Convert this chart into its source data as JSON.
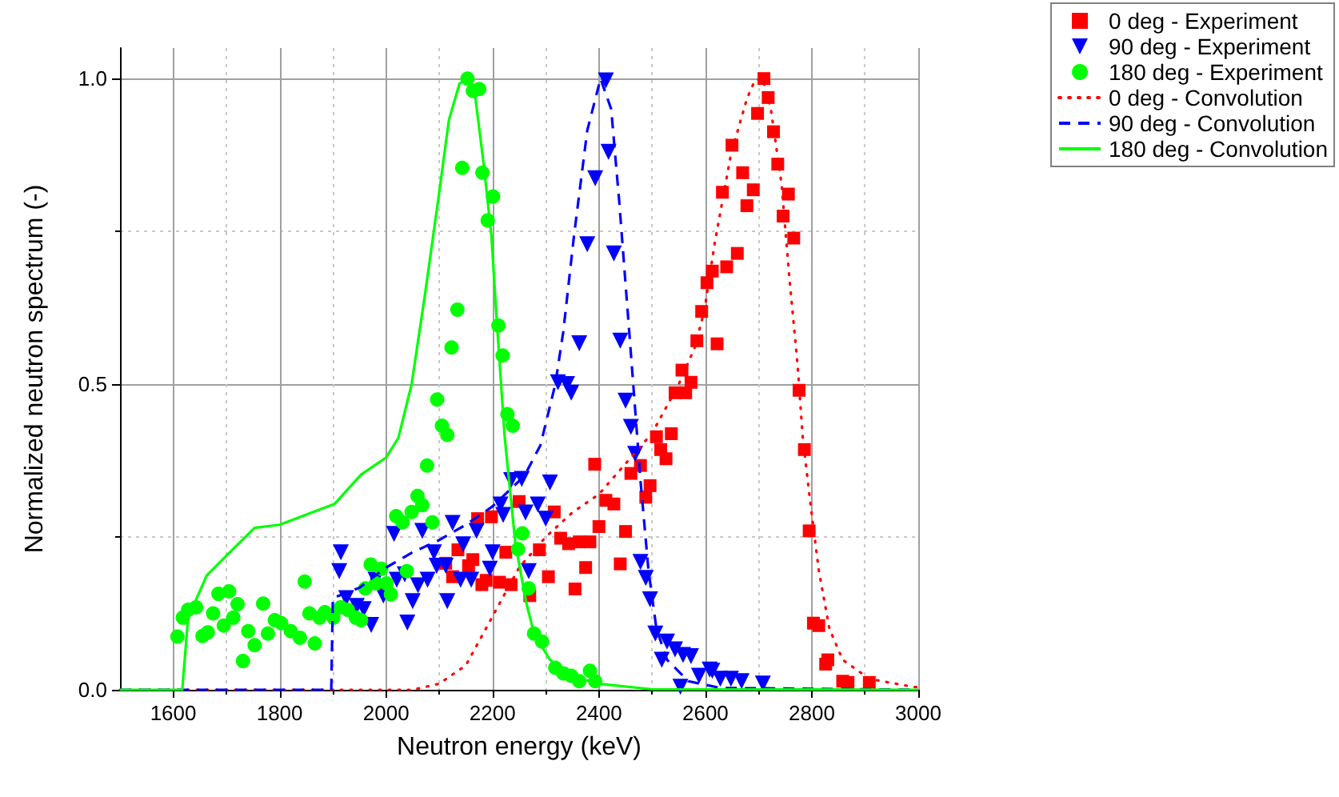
{
  "chart_data": {
    "type": "scatter",
    "xlabel": "Neutron energy (keV)",
    "ylabel": "Normalized neutron spectrum (-)",
    "xlim": [
      1500,
      3000
    ],
    "ylim": [
      0,
      1.05
    ],
    "xticks": [
      1600,
      {
        "value": 1700,
        "label": null
      },
      1800,
      {
        "value": 1900,
        "label": null
      },
      2000,
      {
        "value": 2100,
        "label": null
      },
      2200,
      {
        "value": 2300,
        "label": null
      },
      2400,
      {
        "value": 2500,
        "label": null
      },
      2600,
      {
        "value": 2700,
        "label": null
      },
      2800,
      {
        "value": 2900,
        "label": null
      },
      3000
    ],
    "yticks": [
      {
        "value": 0,
        "label": "0.0"
      },
      {
        "value": 0.25,
        "label": null
      },
      {
        "value": 0.5,
        "label": "0.5"
      },
      {
        "value": 0.75,
        "label": null
      },
      {
        "value": 1,
        "label": "1.0"
      }
    ],
    "grid": true,
    "legend": "top right",
    "series": [
      {
        "name": "0 deg - Experiment",
        "marker": "square",
        "color": "#ff0000",
        "x": [
          2112,
          2125,
          2135,
          2155,
          2163,
          2172,
          2180,
          2188,
          2198,
          2213,
          2225,
          2235,
          2250,
          2270,
          2288,
          2305,
          2316,
          2328,
          2343,
          2355,
          2363,
          2375,
          2383,
          2392,
          2400,
          2413,
          2428,
          2440,
          2450,
          2460,
          2478,
          2488,
          2496,
          2508,
          2516,
          2526,
          2536,
          2543,
          2556,
          2563,
          2573,
          2584,
          2593,
          2603,
          2613,
          2622,
          2632,
          2640,
          2650,
          2660,
          2670,
          2678,
          2690,
          2698,
          2710,
          2718,
          2728,
          2736,
          2746,
          2756,
          2766,
          2776,
          2786,
          2795,
          2803,
          2813,
          2826,
          2830,
          2858,
          2868,
          2908
        ],
        "values": [
          0.207,
          0.185,
          0.229,
          0.203,
          0.213,
          0.28,
          0.172,
          0.179,
          0.283,
          0.176,
          0.225,
          0.172,
          0.308,
          0.154,
          0.229,
          0.185,
          0.291,
          0.248,
          0.239,
          0.165,
          0.242,
          0.2,
          0.242,
          0.369,
          0.267,
          0.31,
          0.304,
          0.206,
          0.259,
          0.354,
          0.367,
          0.315,
          0.334,
          0.414,
          0.393,
          0.378,
          0.419,
          0.486,
          0.523,
          0.486,
          0.503,
          0.571,
          0.619,
          0.666,
          0.685,
          0.566,
          0.814,
          0.692,
          0.891,
          0.714,
          0.846,
          0.792,
          0.818,
          0.943,
          1.0,
          0.969,
          0.913,
          0.86,
          0.775,
          0.811,
          0.739,
          0.49,
          0.393,
          0.26,
          0.109,
          0.105,
          0.042,
          0.049,
          0.014,
          0.012,
          0.012
        ]
      },
      {
        "name": "90 deg - Experiment",
        "marker": "triangle-down",
        "color": "#0000ff",
        "x": [
          1912,
          1915,
          1925,
          1945,
          1958,
          1972,
          1980,
          1995,
          2015,
          2020,
          2035,
          2040,
          2050,
          2060,
          2068,
          2078,
          2090,
          2095,
          2112,
          2115,
          2125,
          2140,
          2145,
          2160,
          2170,
          2195,
          2200,
          2215,
          2220,
          2235,
          2255,
          2262,
          2268,
          2285,
          2300,
          2308,
          2323,
          2340,
          2348,
          2363,
          2378,
          2393,
          2413,
          2418,
          2428,
          2440,
          2450,
          2460,
          2468,
          2478,
          2488,
          2496,
          2506,
          2518,
          2528,
          2543,
          2553,
          2558,
          2573,
          2588,
          2608,
          2613,
          2628,
          2648,
          2668,
          2708
        ],
        "values": [
          0.194,
          0.225,
          0.15,
          0.137,
          0.132,
          0.106,
          0.18,
          0.154,
          0.255,
          0.18,
          0.189,
          0.11,
          0.145,
          0.171,
          0.26,
          0.18,
          0.225,
          0.203,
          0.203,
          0.145,
          0.273,
          0.18,
          0.238,
          0.18,
          0.26,
          0.198,
          0.225,
          0.303,
          0.286,
          0.343,
          0.345,
          0.29,
          0.194,
          0.303,
          0.28,
          0.339,
          0.503,
          0.5,
          0.486,
          0.567,
          0.729,
          0.837,
          0.997,
          0.88,
          0.714,
          0.571,
          0.473,
          0.43,
          0.386,
          0.209,
          0.183,
          0.148,
          0.092,
          0.049,
          0.079,
          0.066,
          0.005,
          0.057,
          0.055,
          0.023,
          0.033,
          0.031,
          0.018,
          0.018,
          0.014,
          0.01
        ]
      },
      {
        "name": "180 deg - Experiment",
        "marker": "circle",
        "color": "#00ff00",
        "x": [
          1608,
          1618,
          1628,
          1643,
          1655,
          1665,
          1675,
          1685,
          1695,
          1705,
          1713,
          1721,
          1731,
          1741,
          1753,
          1769,
          1778,
          1791,
          1803,
          1821,
          1838,
          1847,
          1856,
          1866,
          1875,
          1885,
          1901,
          1915,
          1928,
          1943,
          1953,
          1961,
          1971,
          1981,
          1991,
          2001,
          2009,
          2019,
          2031,
          2039,
          2048,
          2059,
          2068,
          2077,
          2087,
          2096,
          2105,
          2115,
          2123,
          2134,
          2143,
          2153,
          2163,
          2175,
          2181,
          2191,
          2201,
          2211,
          2219,
          2228,
          2238,
          2248,
          2256,
          2268,
          2278,
          2293,
          2318,
          2333,
          2348,
          2363,
          2383,
          2393
        ],
        "values": [
          0.087,
          0.118,
          0.131,
          0.135,
          0.088,
          0.094,
          0.125,
          0.157,
          0.105,
          0.161,
          0.118,
          0.14,
          0.047,
          0.096,
          0.073,
          0.141,
          0.092,
          0.114,
          0.109,
          0.096,
          0.085,
          0.177,
          0.125,
          0.076,
          0.118,
          0.127,
          0.118,
          0.135,
          0.131,
          0.118,
          0.114,
          0.166,
          0.205,
          0.174,
          0.198,
          0.174,
          0.156,
          0.284,
          0.274,
          0.194,
          0.291,
          0.317,
          0.302,
          0.367,
          0.274,
          0.475,
          0.432,
          0.417,
          0.56,
          0.622,
          0.854,
          1.0,
          0.98,
          0.983,
          0.846,
          0.768,
          0.807,
          0.596,
          0.547,
          0.451,
          0.432,
          0.23,
          0.256,
          0.166,
          0.092,
          0.079,
          0.036,
          0.027,
          0.023,
          0.014,
          0.031,
          0.014
        ]
      },
      {
        "name": "0 deg - Convolution",
        "type": "line",
        "marker": "none",
        "line_style": "dotted",
        "color": "#ff0000",
        "x": [
          1500,
          2050,
          2100,
          2150,
          2200,
          2250,
          2300,
          2350,
          2400,
          2450,
          2500,
          2550,
          2580,
          2598,
          2618,
          2648,
          2678,
          2693,
          2708,
          2723,
          2743,
          2758,
          2773,
          2783,
          2798,
          2813,
          2833,
          2858,
          2908,
          2988,
          3000
        ],
        "values": [
          0,
          0,
          0.01,
          0.04,
          0.12,
          0.2,
          0.25,
          0.29,
          0.32,
          0.37,
          0.42,
          0.5,
          0.56,
          0.62,
          0.733,
          0.876,
          0.967,
          0.997,
          1.0,
          0.95,
          0.828,
          0.672,
          0.534,
          0.412,
          0.3,
          0.196,
          0.1,
          0.049,
          0.018,
          0.005,
          0.004
        ]
      },
      {
        "name": "90 deg - Convolution",
        "type": "line",
        "marker": "none",
        "line_style": "dashed",
        "color": "#0000ff",
        "x": [
          1500,
          1897,
          1900,
          1950,
          2000,
          2050,
          2100,
          2150,
          2200,
          2230,
          2260,
          2290,
          2318,
          2333,
          2353,
          2378,
          2403,
          2423,
          2438,
          2453,
          2466,
          2478,
          2493,
          2508,
          2528,
          2568,
          2628,
          3000
        ],
        "values": [
          0,
          0,
          0.15,
          0.167,
          0.2,
          0.225,
          0.245,
          0.27,
          0.3,
          0.325,
          0.35,
          0.4,
          0.5,
          0.586,
          0.742,
          0.915,
          1.0,
          0.95,
          0.8,
          0.63,
          0.482,
          0.343,
          0.196,
          0.1,
          0.049,
          0.014,
          0.003,
          0
        ]
      },
      {
        "name": "180 deg - Convolution",
        "type": "line",
        "marker": "none",
        "line_style": "solid",
        "color": "#00ff00",
        "x": [
          1500,
          1617,
          1628,
          1663,
          1703,
          1753,
          1800,
          1903,
          1953,
          2000,
          2023,
          2048,
          2073,
          2098,
          2118,
          2138,
          2153,
          2168,
          2183,
          2198,
          2208,
          2223,
          2243,
          2263,
          2278,
          2308,
          2348,
          2398,
          2498,
          3000
        ],
        "values": [
          0,
          0,
          0.118,
          0.187,
          0.222,
          0.265,
          0.27,
          0.304,
          0.352,
          0.38,
          0.412,
          0.5,
          0.646,
          0.802,
          0.932,
          0.992,
          1.0,
          0.967,
          0.863,
          0.742,
          0.603,
          0.412,
          0.239,
          0.144,
          0.092,
          0.049,
          0.023,
          0.01,
          0.001,
          0
        ]
      }
    ]
  }
}
